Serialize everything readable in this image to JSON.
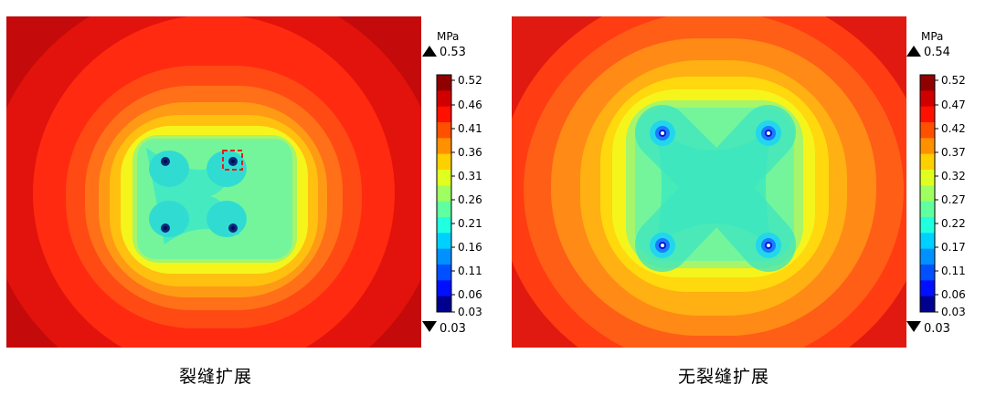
{
  "panels": [
    {
      "caption": "裂缝扩展",
      "unit": "MPa",
      "max_value": "0.53",
      "min_value": "0.03",
      "ticks": [
        "0.52",
        "0.46",
        "0.41",
        "0.36",
        "0.31",
        "0.26",
        "0.21",
        "0.16",
        "0.11",
        "0.06",
        "0.03"
      ],
      "background_color": "#cc0d0d"
    },
    {
      "caption": "无裂缝扩展",
      "unit": "MPa",
      "max_value": "0.54",
      "min_value": "0.03",
      "ticks": [
        "0.52",
        "0.47",
        "0.42",
        "0.37",
        "0.32",
        "0.27",
        "0.22",
        "0.17",
        "0.11",
        "0.06",
        "0.03"
      ],
      "background_color": "#e81e10"
    }
  ],
  "colormap": [
    "#00008f",
    "#0010ff",
    "#0050ff",
    "#0090ff",
    "#00d0ff",
    "#20ffe0",
    "#60ffa0",
    "#a0ff60",
    "#e0ff20",
    "#ffd000",
    "#ff9000",
    "#ff5000",
    "#ff1000",
    "#d00000",
    "#900000"
  ]
}
